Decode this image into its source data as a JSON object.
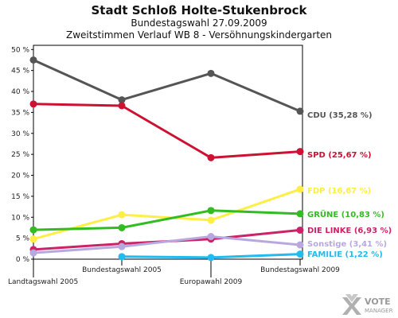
{
  "chart_data": {
    "type": "line",
    "title": "Stadt Schloß Holte-Stukenbrock",
    "subtitle1": "Bundestagswahl 27.09.2009",
    "subtitle2": "Zweitstimmen Verlauf WB 8 - Versöhnungskindergarten",
    "x": [
      "Landtagswahl 2005",
      "Bundestagswahl 2005",
      "Europawahl 2009",
      "Bundestagswahl 2009"
    ],
    "y_ticks": [
      "0 %",
      "5 %",
      "10 %",
      "15 %",
      "20 %",
      "25 %",
      "30 %",
      "35 %",
      "40 %",
      "45 %",
      "50 %"
    ],
    "ylim": [
      0,
      51
    ],
    "grid": false,
    "series": [
      {
        "name": "CDU",
        "label": "CDU (35,28 %)",
        "color": "#555555",
        "values": [
          47.5,
          38.0,
          44.3,
          35.28
        ]
      },
      {
        "name": "SPD",
        "label": "SPD (25,67 %)",
        "color": "#cc1133",
        "values": [
          37.0,
          36.6,
          24.2,
          25.67
        ]
      },
      {
        "name": "FDP",
        "label": "FDP (16,67 %)",
        "color": "#ffee44",
        "values": [
          4.8,
          10.6,
          9.3,
          16.67
        ]
      },
      {
        "name": "GRÜNE",
        "label": "GRÜNE (10,83 %)",
        "color": "#33bb22",
        "values": [
          7.0,
          7.5,
          11.6,
          10.83
        ]
      },
      {
        "name": "DIE LINKE",
        "label": "DIE LINKE (6,93 %)",
        "color": "#cc2266",
        "values": [
          2.3,
          3.7,
          4.8,
          6.93
        ]
      },
      {
        "name": "Sonstige",
        "label": "Sonstige (3,41 %)",
        "color": "#b8a8e0",
        "values": [
          1.5,
          3.0,
          5.4,
          3.41
        ]
      },
      {
        "name": "FAMILIE",
        "label": "FAMILIE (1,22 %)",
        "color": "#22bbee",
        "values": [
          null,
          0.6,
          0.4,
          1.22
        ]
      }
    ]
  },
  "logo": {
    "line1": "VOTE",
    "line2": "MANAGER"
  }
}
